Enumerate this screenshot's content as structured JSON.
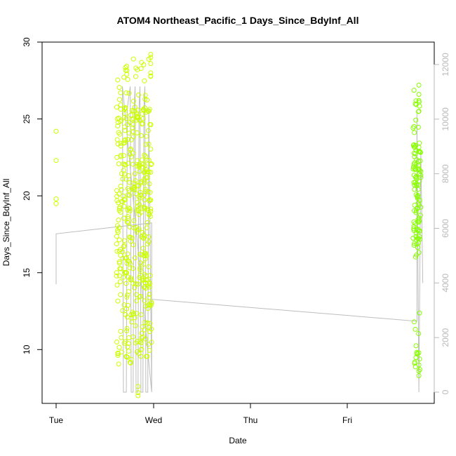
{
  "chart_data": {
    "type": "scatter",
    "title": "ATOM4 Northeast_Pacific_1 Days_Since_BdyInf_All",
    "xlabel": "Date",
    "ylabel": "Days_Since_BdyInf_All",
    "x_ticks": [
      "Tue",
      "Wed",
      "Thu",
      "Fri"
    ],
    "y_ticks": [
      10,
      15,
      20,
      25,
      30
    ],
    "y_right_ticks": [
      0,
      2000,
      4000,
      6000,
      8000,
      10000,
      12000
    ],
    "ylim": [
      6.5,
      30
    ],
    "y_right_lim": [
      -200,
      12600
    ],
    "xlim_days": [
      -0.05,
      3.8
    ],
    "grid": false,
    "colors": {
      "point_stroke_yellow": "#ccff00",
      "point_stroke_green": "#88ff00",
      "line": "#bdbdbd",
      "right_axis": "#b9b9b9",
      "frame": "#000000"
    }
  }
}
